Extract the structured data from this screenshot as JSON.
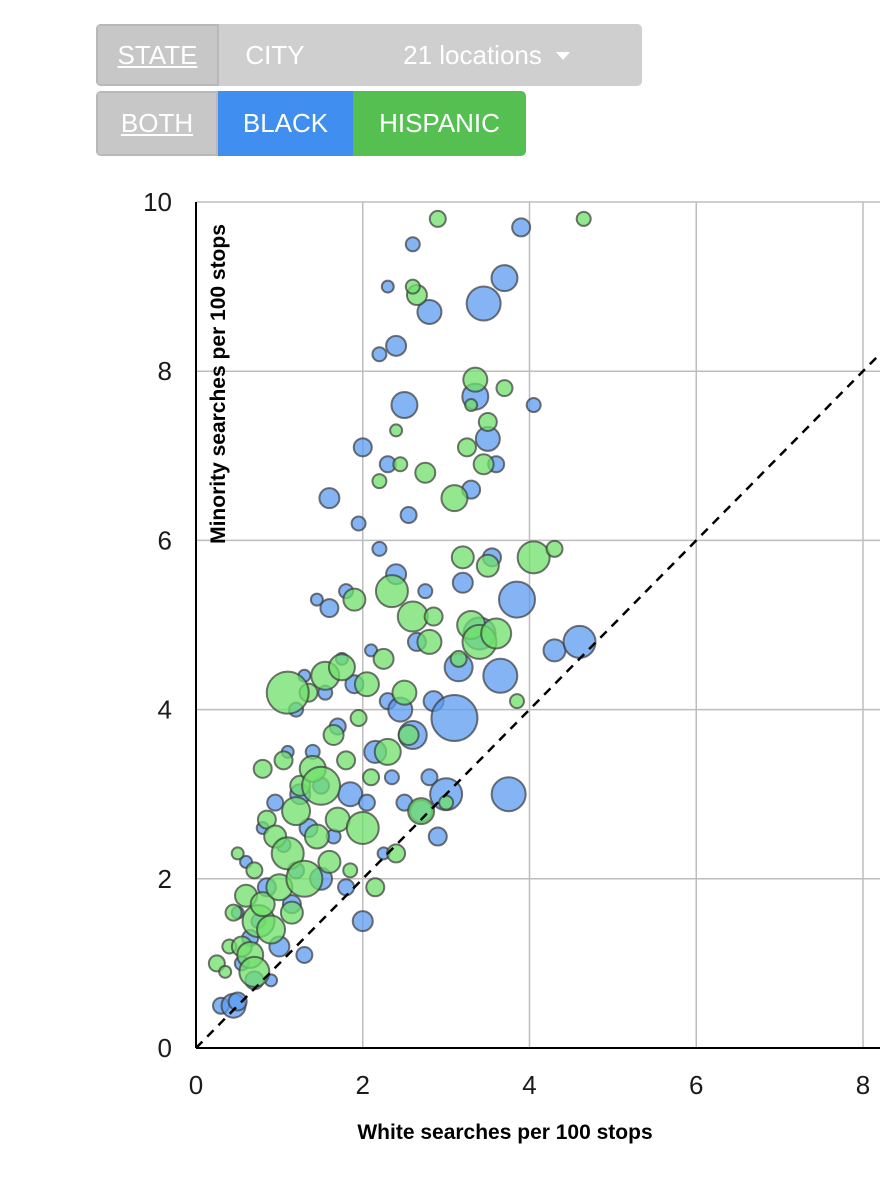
{
  "controls": {
    "geo": {
      "state": "STATE",
      "city": "CITY",
      "dropdown": "21 locations"
    },
    "race": {
      "both": "BOTH",
      "black": "BLACK",
      "hispanic": "HISPANIC"
    }
  },
  "colors": {
    "black": "#5b9bf0",
    "hispanic": "#6fe06a",
    "active": "#c7c7c7",
    "inactive": "#cfcfcf"
  },
  "chart_data": {
    "type": "scatter",
    "xlabel": "White searches per 100 stops",
    "ylabel": "Minority searches per 100 stops",
    "xlim": [
      0,
      8.2
    ],
    "ylim": [
      0,
      10
    ],
    "xticks": [
      0,
      2,
      4,
      6,
      8
    ],
    "yticks": [
      0,
      2,
      4,
      6,
      8,
      10
    ],
    "grid": true,
    "reference_line": "y = x (dashed)",
    "series": [
      {
        "color": "blue",
        "points": [
          [
            0.3,
            0.5,
            8
          ],
          [
            0.45,
            0.5,
            12
          ],
          [
            0.5,
            0.55,
            9
          ],
          [
            0.55,
            1.0,
            7
          ],
          [
            0.5,
            1.6,
            6
          ],
          [
            0.6,
            2.2,
            6
          ],
          [
            0.65,
            1.3,
            8
          ],
          [
            0.7,
            0.8,
            9
          ],
          [
            0.75,
            1.5,
            7
          ],
          [
            0.8,
            2.6,
            6
          ],
          [
            0.85,
            1.9,
            9
          ],
          [
            0.9,
            0.8,
            6
          ],
          [
            0.95,
            2.9,
            8
          ],
          [
            1.0,
            1.2,
            10
          ],
          [
            1.05,
            2.4,
            7
          ],
          [
            1.1,
            3.5,
            6
          ],
          [
            1.15,
            1.7,
            9
          ],
          [
            1.2,
            2.1,
            8
          ],
          [
            1.2,
            4.0,
            7
          ],
          [
            1.25,
            3.0,
            10
          ],
          [
            1.3,
            1.1,
            8
          ],
          [
            1.3,
            4.4,
            6
          ],
          [
            1.35,
            2.6,
            9
          ],
          [
            1.4,
            3.5,
            7
          ],
          [
            1.45,
            5.3,
            6
          ],
          [
            1.5,
            2.0,
            11
          ],
          [
            1.5,
            3.1,
            8
          ],
          [
            1.55,
            4.2,
            7
          ],
          [
            1.6,
            5.2,
            9
          ],
          [
            1.6,
            6.5,
            10
          ],
          [
            1.65,
            2.5,
            7
          ],
          [
            1.7,
            3.8,
            8
          ],
          [
            1.75,
            4.6,
            6
          ],
          [
            1.8,
            1.9,
            8
          ],
          [
            1.8,
            5.4,
            7
          ],
          [
            1.85,
            3.0,
            12
          ],
          [
            1.9,
            4.3,
            9
          ],
          [
            1.95,
            6.2,
            7
          ],
          [
            2.0,
            1.5,
            10
          ],
          [
            2.0,
            7.1,
            9
          ],
          [
            2.05,
            2.9,
            8
          ],
          [
            2.1,
            4.7,
            6
          ],
          [
            2.15,
            3.5,
            11
          ],
          [
            2.2,
            5.9,
            7
          ],
          [
            2.25,
            2.3,
            6
          ],
          [
            2.3,
            4.1,
            8
          ],
          [
            2.3,
            6.9,
            8
          ],
          [
            2.35,
            3.2,
            7
          ],
          [
            2.4,
            5.6,
            10
          ],
          [
            2.4,
            8.3,
            10
          ],
          [
            2.45,
            4.0,
            12
          ],
          [
            2.5,
            2.9,
            8
          ],
          [
            2.5,
            7.6,
            13
          ],
          [
            2.55,
            6.3,
            8
          ],
          [
            2.6,
            3.7,
            14
          ],
          [
            2.6,
            9.5,
            7
          ],
          [
            2.65,
            4.8,
            9
          ],
          [
            2.7,
            2.8,
            11
          ],
          [
            2.75,
            5.4,
            7
          ],
          [
            2.8,
            3.2,
            8
          ],
          [
            2.8,
            8.7,
            12
          ],
          [
            2.85,
            4.1,
            10
          ],
          [
            2.9,
            2.5,
            9
          ],
          [
            3.0,
            3.0,
            16
          ],
          [
            3.1,
            3.9,
            23
          ],
          [
            3.15,
            4.5,
            14
          ],
          [
            3.2,
            5.5,
            10
          ],
          [
            3.3,
            6.6,
            9
          ],
          [
            3.35,
            7.7,
            13
          ],
          [
            3.4,
            4.9,
            16
          ],
          [
            3.45,
            8.8,
            17
          ],
          [
            3.5,
            7.2,
            12
          ],
          [
            3.55,
            5.8,
            9
          ],
          [
            3.6,
            6.9,
            8
          ],
          [
            3.65,
            4.4,
            17
          ],
          [
            3.7,
            9.1,
            13
          ],
          [
            3.75,
            3.0,
            17
          ],
          [
            3.85,
            5.3,
            18
          ],
          [
            3.9,
            9.7,
            9
          ],
          [
            4.05,
            7.6,
            7
          ],
          [
            4.3,
            4.7,
            11
          ],
          [
            4.6,
            4.8,
            16
          ],
          [
            2.3,
            9.0,
            6
          ],
          [
            2.2,
            8.2,
            7
          ]
        ]
      },
      {
        "color": "green",
        "points": [
          [
            0.25,
            1.0,
            8
          ],
          [
            0.35,
            0.9,
            6
          ],
          [
            0.4,
            1.2,
            7
          ],
          [
            0.45,
            1.6,
            8
          ],
          [
            0.5,
            2.3,
            6
          ],
          [
            0.55,
            1.2,
            10
          ],
          [
            0.6,
            1.8,
            11
          ],
          [
            0.65,
            1.1,
            13
          ],
          [
            0.7,
            2.1,
            8
          ],
          [
            0.75,
            1.5,
            16
          ],
          [
            0.8,
            1.7,
            12
          ],
          [
            0.85,
            2.7,
            9
          ],
          [
            0.9,
            1.4,
            14
          ],
          [
            0.95,
            2.5,
            11
          ],
          [
            1.0,
            1.9,
            13
          ],
          [
            1.05,
            3.4,
            9
          ],
          [
            1.1,
            2.3,
            16
          ],
          [
            1.15,
            1.6,
            11
          ],
          [
            1.2,
            2.8,
            14
          ],
          [
            1.25,
            3.1,
            10
          ],
          [
            1.3,
            2.0,
            18
          ],
          [
            1.35,
            4.2,
            9
          ],
          [
            1.4,
            3.3,
            13
          ],
          [
            1.45,
            2.5,
            12
          ],
          [
            1.5,
            3.1,
            19
          ],
          [
            1.55,
            4.4,
            14
          ],
          [
            1.6,
            2.2,
            11
          ],
          [
            1.65,
            3.7,
            10
          ],
          [
            1.7,
            2.7,
            12
          ],
          [
            1.75,
            4.5,
            13
          ],
          [
            1.8,
            3.4,
            9
          ],
          [
            1.85,
            2.1,
            7
          ],
          [
            1.9,
            5.3,
            11
          ],
          [
            1.95,
            3.9,
            8
          ],
          [
            2.0,
            2.6,
            16
          ],
          [
            2.05,
            4.3,
            12
          ],
          [
            2.1,
            3.2,
            8
          ],
          [
            2.15,
            1.9,
            9
          ],
          [
            2.2,
            6.7,
            7
          ],
          [
            2.25,
            4.6,
            10
          ],
          [
            2.3,
            3.5,
            13
          ],
          [
            2.35,
            5.4,
            16
          ],
          [
            2.4,
            2.3,
            9
          ],
          [
            2.45,
            6.9,
            7
          ],
          [
            2.5,
            4.2,
            12
          ],
          [
            2.55,
            3.7,
            10
          ],
          [
            2.6,
            5.1,
            15
          ],
          [
            2.65,
            8.9,
            10
          ],
          [
            2.7,
            2.8,
            13
          ],
          [
            2.75,
            6.8,
            10
          ],
          [
            2.8,
            4.8,
            12
          ],
          [
            2.85,
            5.1,
            9
          ],
          [
            2.9,
            9.8,
            8
          ],
          [
            3.0,
            2.9,
            7
          ],
          [
            3.1,
            6.5,
            13
          ],
          [
            3.15,
            4.6,
            8
          ],
          [
            3.2,
            5.8,
            11
          ],
          [
            3.25,
            7.1,
            9
          ],
          [
            3.3,
            5.0,
            14
          ],
          [
            3.35,
            7.9,
            12
          ],
          [
            3.4,
            4.8,
            17
          ],
          [
            3.45,
            6.9,
            10
          ],
          [
            3.5,
            5.7,
            11
          ],
          [
            3.6,
            4.9,
            15
          ],
          [
            3.7,
            7.8,
            8
          ],
          [
            3.85,
            4.1,
            7
          ],
          [
            4.05,
            5.8,
            16
          ],
          [
            4.3,
            5.9,
            8
          ],
          [
            4.65,
            9.8,
            7
          ],
          [
            1.1,
            4.2,
            21
          ],
          [
            0.8,
            3.3,
            9
          ],
          [
            0.7,
            0.9,
            15
          ],
          [
            2.4,
            7.3,
            6
          ],
          [
            2.6,
            9.0,
            7
          ],
          [
            3.3,
            7.6,
            6
          ],
          [
            3.5,
            7.4,
            9
          ]
        ]
      }
    ]
  }
}
